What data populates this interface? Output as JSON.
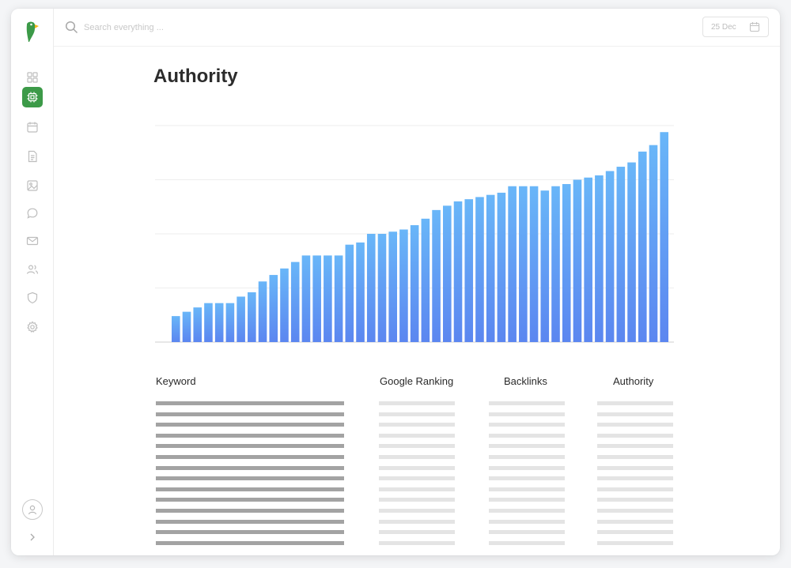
{
  "search": {
    "placeholder": "Search everything ..."
  },
  "date": {
    "label": "25 Dec"
  },
  "page": {
    "title": "Authority"
  },
  "sidebar": {
    "items": [
      {
        "icon": "grid-icon",
        "active": false
      },
      {
        "icon": "chip-icon",
        "active": true
      },
      {
        "icon": "calendar-icon",
        "active": false
      },
      {
        "icon": "document-icon",
        "active": false
      },
      {
        "icon": "image-icon",
        "active": false
      },
      {
        "icon": "chat-icon",
        "active": false
      },
      {
        "icon": "mail-icon",
        "active": false
      },
      {
        "icon": "users-icon",
        "active": false
      },
      {
        "icon": "shield-icon",
        "active": false
      },
      {
        "icon": "gear-icon",
        "active": false
      }
    ]
  },
  "colors": {
    "accent": "#3c9a48",
    "bar_top": "#69b6f8",
    "bar_bottom": "#5b86f0"
  },
  "chart_data": {
    "type": "bar",
    "gridlines": 4,
    "values": [
      12,
      14,
      16,
      18,
      18,
      18,
      21,
      23,
      28,
      31,
      34,
      37,
      40,
      40,
      40,
      40,
      45,
      46,
      50,
      50,
      51,
      52,
      54,
      57,
      61,
      63,
      65,
      66,
      67,
      68,
      69,
      72,
      72,
      72,
      70,
      72,
      73,
      75,
      76,
      77,
      79,
      81,
      83,
      88,
      91,
      97
    ],
    "ylim": [
      0,
      100
    ]
  },
  "table": {
    "headers": [
      "Keyword",
      "Google Ranking",
      "Backlinks",
      "Authority"
    ],
    "row_count": 14
  }
}
